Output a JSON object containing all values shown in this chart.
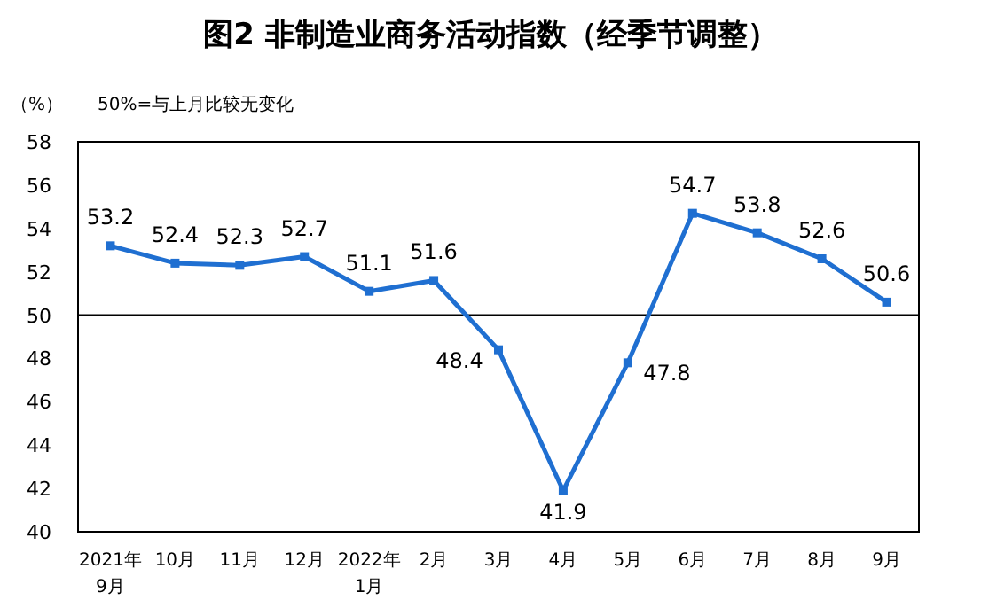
{
  "chart_data": {
    "type": "line",
    "title": "图2  非制造业商务活动指数（经季节调整）",
    "ylabel": "（%）",
    "annotations": [
      "50%=与上月比较无变化"
    ],
    "categories": [
      "2021年\n9月",
      "10月",
      "11月",
      "12月",
      "2022年\n1月",
      "2月",
      "3月",
      "4月",
      "5月",
      "6月",
      "7月",
      "8月",
      "9月"
    ],
    "series": [
      {
        "color": "#1f6fd1",
        "values": [
          53.2,
          52.4,
          52.3,
          52.7,
          51.1,
          51.6,
          48.4,
          41.9,
          47.8,
          54.7,
          53.8,
          52.6,
          50.6
        ]
      }
    ],
    "ylim": [
      40,
      58
    ],
    "yticks": [
      40,
      42,
      44,
      46,
      48,
      50,
      52,
      54,
      56,
      58
    ],
    "marker": "square",
    "data_labels": true,
    "grid": false,
    "ref_lines": [
      {
        "axis": "y",
        "value": 50,
        "color": "#000000"
      }
    ]
  }
}
